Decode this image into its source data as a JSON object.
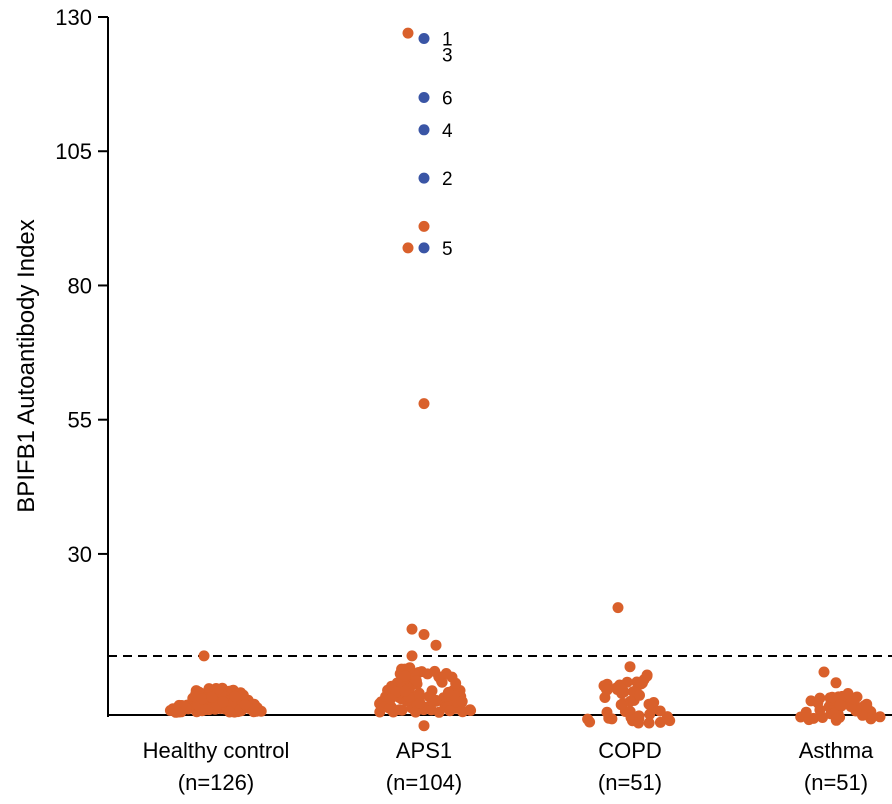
{
  "chart_data": {
    "type": "scatter",
    "ylabel": "BPIFB1 Autoantibody Index",
    "ylim": [
      0,
      130
    ],
    "yticks": [
      30,
      55,
      80,
      105,
      130
    ],
    "threshold": 11,
    "colors": {
      "default": "#d9602b",
      "highlight": "#3a55a5"
    },
    "groups": [
      {
        "name": "Healthy control",
        "n_label": "(n=126)",
        "count": 126,
        "spread": [
          0.5,
          5
        ],
        "extra": [
          11
        ]
      },
      {
        "name": "APS1",
        "n_label": "(n=104)",
        "count": 104,
        "spread": [
          0.5,
          9
        ],
        "extra": [
          16,
          15,
          13,
          11,
          -2,
          127,
          91,
          87,
          58
        ]
      },
      {
        "name": "COPD",
        "n_label": "(n=51)",
        "count": 51,
        "spread": [
          -2,
          7.5
        ],
        "extra": [
          20,
          9
        ]
      },
      {
        "name": "Asthma",
        "n_label": "(n=51)",
        "count": 51,
        "spread": [
          -1,
          3.5
        ],
        "extra": [
          8,
          6,
          4
        ]
      }
    ],
    "labeled_points": [
      {
        "label": "1",
        "group": "APS1",
        "y": 126
      },
      {
        "label": "3",
        "group": "APS1",
        "y": 123
      },
      {
        "label": "6",
        "group": "APS1",
        "y": 115
      },
      {
        "label": "4",
        "group": "APS1",
        "y": 109
      },
      {
        "label": "2",
        "group": "APS1",
        "y": 100
      },
      {
        "label": "5",
        "group": "APS1",
        "y": 87
      }
    ]
  }
}
